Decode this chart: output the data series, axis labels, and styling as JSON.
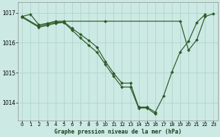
{
  "background_color": "#cce9e4",
  "grid_color": "#b0d8d0",
  "line_color": "#2d5a27",
  "title": "Graphe pression niveau de la mer (hPa)",
  "xlim": [
    -0.5,
    23.5
  ],
  "ylim": [
    1013.4,
    1017.35
  ],
  "yticks": [
    1014,
    1015,
    1016,
    1017
  ],
  "xticks": [
    0,
    1,
    2,
    3,
    4,
    5,
    6,
    7,
    8,
    9,
    10,
    11,
    12,
    13,
    14,
    15,
    16,
    17,
    18,
    19,
    20,
    21,
    22,
    23
  ],
  "series": [
    {
      "x": [
        0,
        1,
        2,
        3,
        4,
        5,
        10,
        19,
        20,
        21,
        22,
        23
      ],
      "y": [
        1016.88,
        1016.95,
        1016.6,
        1016.65,
        1016.72,
        1016.72,
        1016.72,
        1016.72,
        1015.75,
        1016.1,
        1016.88,
        1016.97
      ]
    },
    {
      "x": [
        0,
        2,
        3,
        4,
        5,
        6,
        7,
        8,
        9,
        10,
        11,
        12,
        13,
        14,
        15,
        16,
        17,
        18,
        19,
        20,
        21,
        22
      ],
      "y": [
        1016.88,
        1016.55,
        1016.62,
        1016.68,
        1016.7,
        1016.48,
        1016.28,
        1016.08,
        1015.85,
        1015.38,
        1014.98,
        1014.65,
        1014.65,
        1013.85,
        1013.85,
        1013.68,
        1014.22,
        1015.02,
        1015.7,
        1016.05,
        1016.68,
        1016.95
      ]
    },
    {
      "x": [
        0,
        2,
        3,
        4,
        5,
        6,
        7,
        8,
        9,
        10,
        11,
        12,
        13,
        14,
        15,
        16
      ],
      "y": [
        1016.85,
        1016.52,
        1016.58,
        1016.65,
        1016.68,
        1016.42,
        1016.16,
        1015.92,
        1015.68,
        1015.28,
        1014.88,
        1014.52,
        1014.52,
        1013.82,
        1013.82,
        1013.62
      ]
    }
  ]
}
